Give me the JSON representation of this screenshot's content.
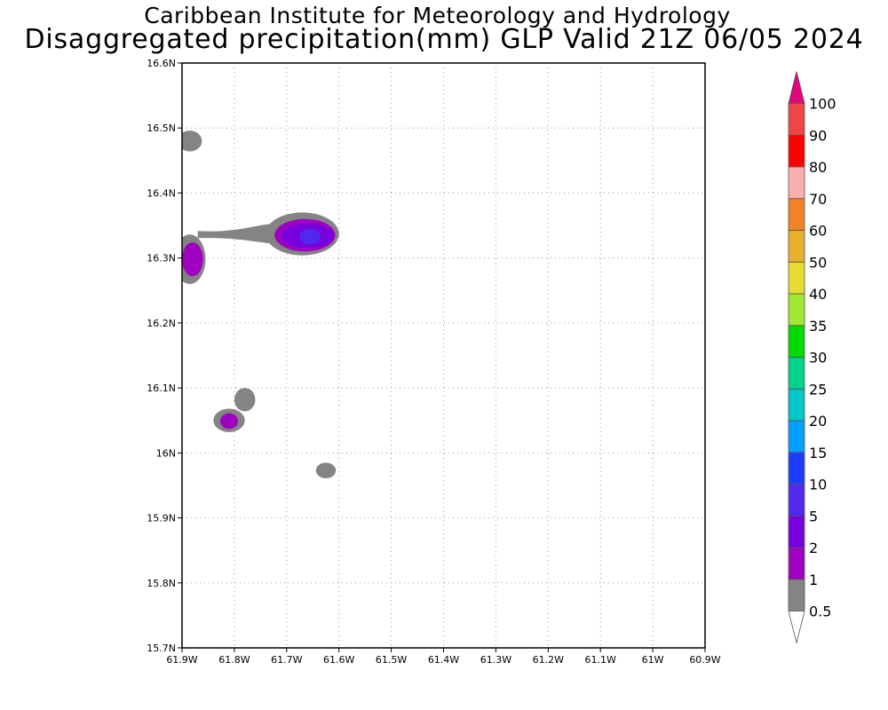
{
  "header": {
    "title_line1": "Caribbean Institute for Meteorology and Hydrology",
    "title_line2": "Disaggregated precipitation(mm) GLP Valid 21Z 06/05 2024"
  },
  "map": {
    "lon_range": [
      -61.9,
      -60.9
    ],
    "lat_range": [
      15.7,
      16.6
    ],
    "x_ticks": [
      {
        "lon": -61.9,
        "label": "61.9W"
      },
      {
        "lon": -61.8,
        "label": "61.8W"
      },
      {
        "lon": -61.7,
        "label": "61.7W"
      },
      {
        "lon": -61.6,
        "label": "61.6W"
      },
      {
        "lon": -61.5,
        "label": "61.5W"
      },
      {
        "lon": -61.4,
        "label": "61.4W"
      },
      {
        "lon": -61.3,
        "label": "61.3W"
      },
      {
        "lon": -61.2,
        "label": "61.2W"
      },
      {
        "lon": -61.1,
        "label": "61.1W"
      },
      {
        "lon": -61.0,
        "label": "61W"
      },
      {
        "lon": -60.9,
        "label": "60.9W"
      }
    ],
    "y_ticks": [
      {
        "lat": 15.7,
        "label": "15.7N"
      },
      {
        "lat": 15.8,
        "label": "15.8N"
      },
      {
        "lat": 15.9,
        "label": "15.9N"
      },
      {
        "lat": 16.0,
        "label": "16N"
      },
      {
        "lat": 16.1,
        "label": "16.1N"
      },
      {
        "lat": 16.2,
        "label": "16.2N"
      },
      {
        "lat": 16.3,
        "label": "16.3N"
      },
      {
        "lat": 16.4,
        "label": "16.4N"
      },
      {
        "lat": 16.5,
        "label": "16.5N"
      },
      {
        "lat": 16.6,
        "label": "16.6N"
      }
    ],
    "precip_areas": [
      {
        "name": "cell-west-edge-top",
        "lon": -61.885,
        "lat": 16.48,
        "rlon": 0.023,
        "rlat": 0.016,
        "level": 1
      },
      {
        "name": "cell-west-edge-mid",
        "lon": -61.885,
        "lat": 16.298,
        "rlon": 0.03,
        "rlat": 0.038,
        "level": 1
      },
      {
        "name": "cell-west-edge-mid",
        "lon": -61.88,
        "lat": 16.298,
        "rlon": 0.02,
        "rlat": 0.026,
        "level": 2
      },
      {
        "name": "cell-central-north",
        "lon": -61.67,
        "lat": 16.337,
        "rlon": 0.07,
        "rlat": 0.033,
        "level": 1
      },
      {
        "name": "cell-central-north",
        "lon": -61.665,
        "lat": 16.335,
        "rlon": 0.058,
        "rlat": 0.025,
        "level": 2
      },
      {
        "name": "cell-central-north",
        "lon": -61.66,
        "lat": 16.334,
        "rlon": 0.05,
        "rlat": 0.019,
        "level": 3
      },
      {
        "name": "cell-central-north",
        "lon": -61.655,
        "lat": 16.333,
        "rlon": 0.02,
        "rlat": 0.012,
        "level": 4
      },
      {
        "name": "cell-south-central",
        "lon": -61.81,
        "lat": 16.05,
        "rlon": 0.03,
        "rlat": 0.018,
        "level": 1
      },
      {
        "name": "cell-south-central",
        "lon": -61.78,
        "lat": 16.082,
        "rlon": 0.02,
        "rlat": 0.018,
        "level": 1
      },
      {
        "name": "cell-south-central",
        "lon": -61.81,
        "lat": 16.049,
        "rlon": 0.017,
        "rlat": 0.012,
        "level": 2
      },
      {
        "name": "cell-south-small",
        "lon": -61.625,
        "lat": 15.973,
        "rlon": 0.019,
        "rlat": 0.012,
        "level": 1
      }
    ],
    "bridge_feature": {
      "name": "rain-bridge-north",
      "from_lon": -61.87,
      "to_lon": -61.73,
      "lat": 16.336,
      "level": 1
    }
  },
  "colorbar": {
    "top_arrow_color": "#e00880",
    "bottom_arrow_color": "#ffffff",
    "bins": [
      {
        "color": "#848484",
        "label": "1"
      },
      {
        "color": "#a000c0",
        "label": "2"
      },
      {
        "color": "#7800dc",
        "label": "5"
      },
      {
        "color": "#5028f0",
        "label": "10"
      },
      {
        "color": "#1e3cff",
        "label": "15"
      },
      {
        "color": "#00a0ff",
        "label": "20"
      },
      {
        "color": "#00c8c8",
        "label": "25"
      },
      {
        "color": "#00d28c",
        "label": "30"
      },
      {
        "color": "#00dc00",
        "label": "35"
      },
      {
        "color": "#a0e632",
        "label": "40"
      },
      {
        "color": "#e6dc32",
        "label": "50"
      },
      {
        "color": "#e6af2d",
        "label": "60"
      },
      {
        "color": "#f08228",
        "label": "70"
      },
      {
        "color": "#faafaf",
        "label": "80"
      },
      {
        "color": "#ff0000",
        "label": "90"
      },
      {
        "color": "#f04646",
        "label": "100"
      }
    ],
    "bottom_label": "0.5"
  }
}
